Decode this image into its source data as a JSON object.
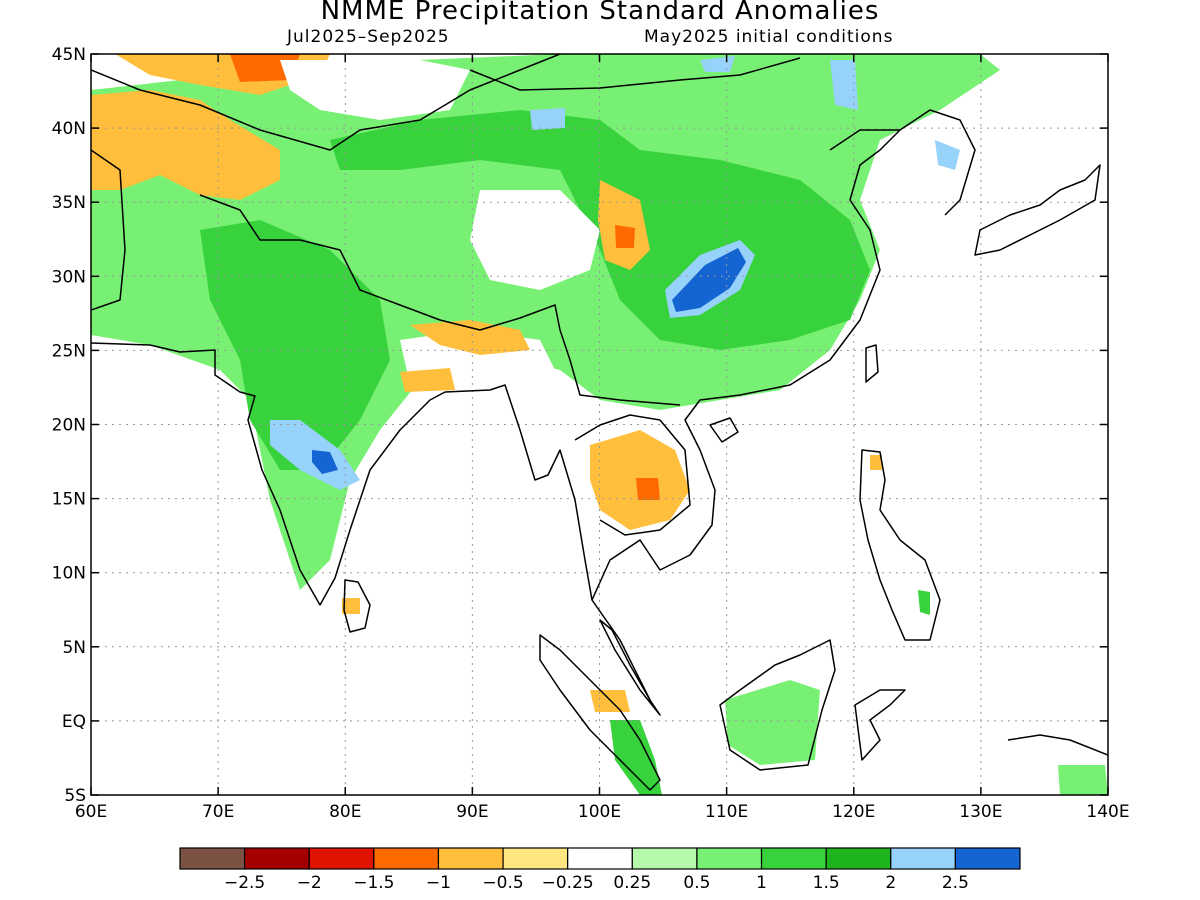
{
  "title": "NMME Precipitation Standard Anomalies",
  "subtitle_left": "Jul2025–Sep2025",
  "subtitle_right": "May2025 initial conditions",
  "map": {
    "lon_range": [
      60,
      140
    ],
    "lat_range": [
      -5,
      45
    ],
    "x_ticks": [
      {
        "value": 60,
        "label": "60E"
      },
      {
        "value": 70,
        "label": "70E"
      },
      {
        "value": 80,
        "label": "80E"
      },
      {
        "value": 90,
        "label": "90E"
      },
      {
        "value": 100,
        "label": "100E"
      },
      {
        "value": 110,
        "label": "110E"
      },
      {
        "value": 120,
        "label": "120E"
      },
      {
        "value": 130,
        "label": "130E"
      },
      {
        "value": 140,
        "label": "140E"
      }
    ],
    "y_ticks": [
      {
        "value": 45,
        "label": "45N"
      },
      {
        "value": 40,
        "label": "40N"
      },
      {
        "value": 35,
        "label": "35N"
      },
      {
        "value": 30,
        "label": "30N"
      },
      {
        "value": 25,
        "label": "25N"
      },
      {
        "value": 20,
        "label": "20N"
      },
      {
        "value": 15,
        "label": "15N"
      },
      {
        "value": 10,
        "label": "10N"
      },
      {
        "value": 5,
        "label": "5N"
      },
      {
        "value": 0,
        "label": "EQ"
      },
      {
        "value": -5,
        "label": "5S"
      }
    ],
    "grid": true
  },
  "colorbar": {
    "colors": [
      "#7b5244",
      "#a50000",
      "#e01200",
      "#ff6a00",
      "#ffbe3c",
      "#ffe680",
      "#ffffff",
      "#b4faaa",
      "#78f073",
      "#37d23c",
      "#1eb41e",
      "#96d2fa",
      "#1464d2"
    ],
    "labels": [
      "−2.5",
      "−2",
      "−1.5",
      "−1",
      "−0.5",
      "−0.25",
      "0.25",
      "0.5",
      "1",
      "1.5",
      "2",
      "2.5"
    ]
  },
  "anomaly_regions": [
    {
      "name": "central-asia-green",
      "level": 1,
      "color": "#78f073"
    },
    {
      "name": "china-green",
      "level": 1.5,
      "color": "#37d23c"
    },
    {
      "name": "india-green",
      "level": 1.5,
      "color": "#37d23c"
    },
    {
      "name": "sichuan-blue",
      "level": 2.5,
      "color": "#1464d2"
    },
    {
      "name": "central-india-blue",
      "level": 2,
      "color": "#96d2fa"
    },
    {
      "name": "thailand-orange",
      "level": -1,
      "color": "#ffbe3c"
    },
    {
      "name": "pakistan-orange",
      "level": -1,
      "color": "#ffbe3c"
    },
    {
      "name": "borneo-green",
      "level": 1,
      "color": "#78f073"
    }
  ]
}
